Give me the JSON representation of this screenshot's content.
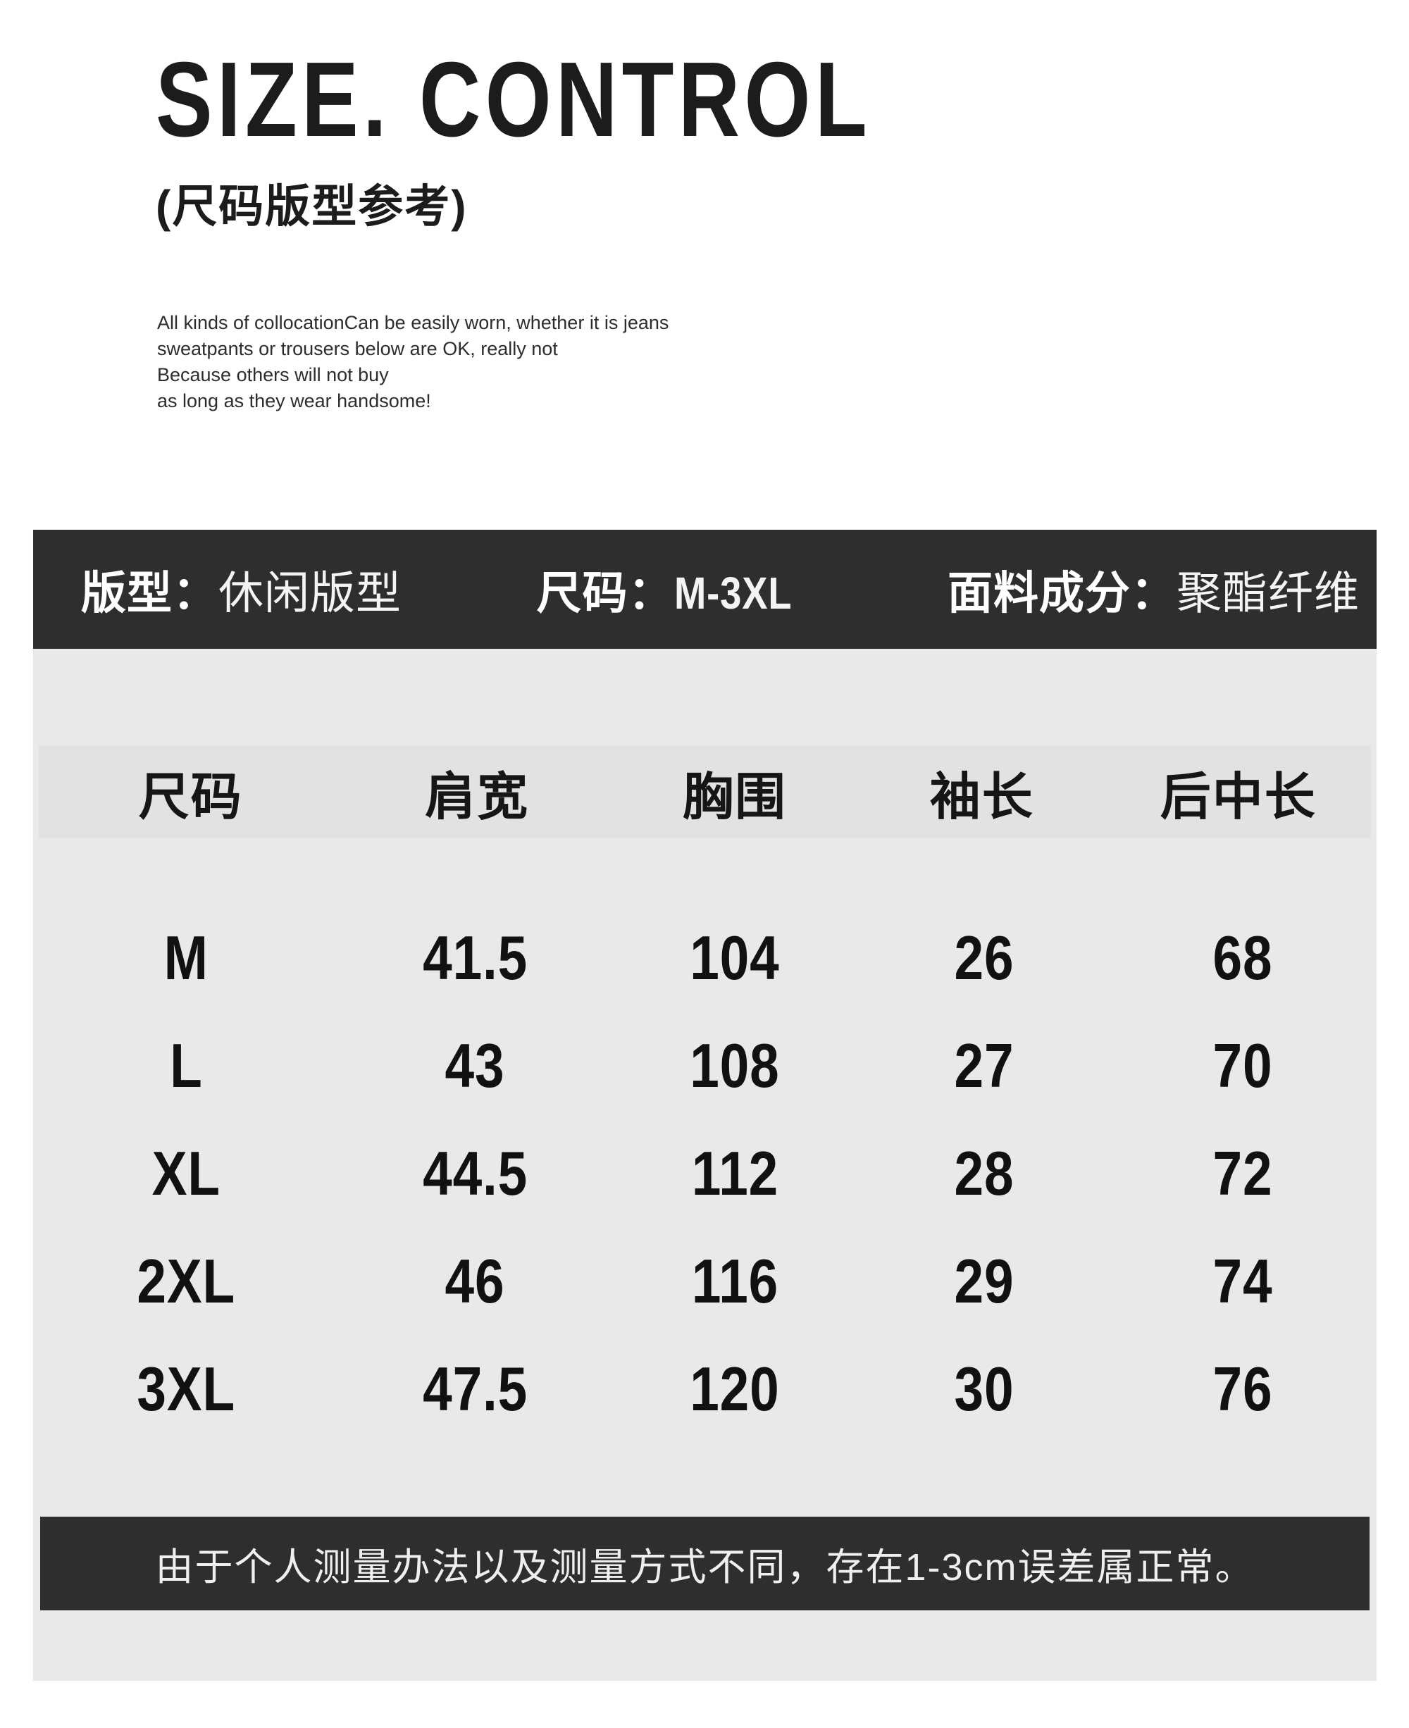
{
  "header": {
    "title": "SIZE. CONTROL",
    "subtitle": "(尺码版型参考)",
    "description_lines": [
      "All kinds of collocationCan be easily worn, whether it is jeans",
      "sweatpants or trousers below are OK, really not",
      "Because others will not buy",
      "as long as they wear handsome!"
    ]
  },
  "spec_bar": {
    "items": [
      {
        "label": "版型：",
        "value": "休闲版型"
      },
      {
        "label": "尺码：",
        "value": "M-3XL"
      },
      {
        "label": "面料成分：",
        "value": "聚酯纤维"
      }
    ]
  },
  "size_table": {
    "columns": [
      "尺码",
      "肩宽",
      "胸围",
      "袖长",
      "后中长"
    ],
    "rows": [
      {
        "size": "M",
        "values": [
          "41.5",
          "104",
          "26",
          "68"
        ]
      },
      {
        "size": "L",
        "values": [
          "43",
          "108",
          "27",
          "70"
        ]
      },
      {
        "size": "XL",
        "values": [
          "44.5",
          "112",
          "28",
          "72"
        ]
      },
      {
        "size": "2XL",
        "values": [
          "46",
          "116",
          "29",
          "74"
        ]
      },
      {
        "size": "3XL",
        "values": [
          "47.5",
          "120",
          "30",
          "76"
        ]
      }
    ]
  },
  "notice": "由于个人测量办法以及测量方式不同，存在1-3cm误差属正常。",
  "colors": {
    "dark_bar": "#2e2e2e",
    "table_background": "#e9e9e9",
    "header_band_background": "#e2e2e2",
    "text": "#141414",
    "inverse_text": "#ffffff"
  }
}
